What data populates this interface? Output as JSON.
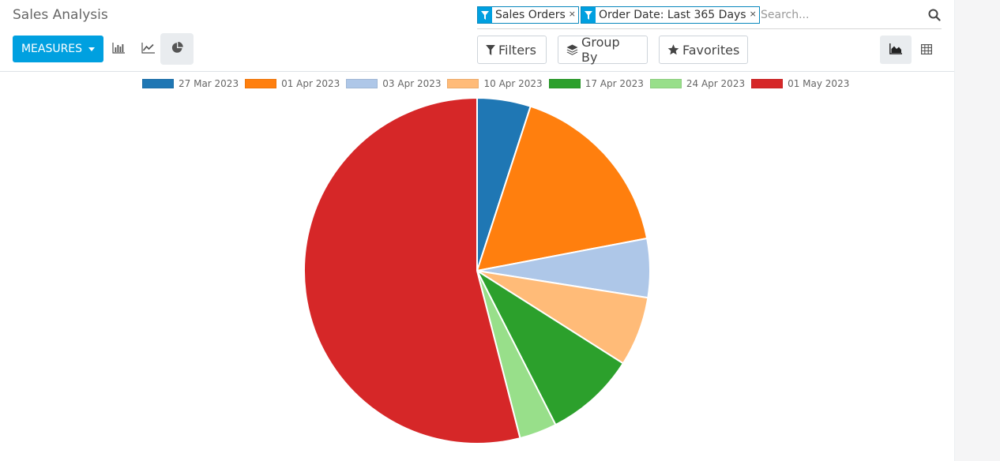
{
  "app": {
    "title": "Sales Analysis"
  },
  "search": {
    "facets": [
      {
        "value": "Sales Orders"
      },
      {
        "value": "Order Date: Last 365 Days"
      }
    ],
    "remove_glyph": "×",
    "placeholder": "Search..."
  },
  "toolbar": {
    "measures_label": "MEASURES",
    "filters_label": "Filters",
    "groupby_label": "Group By",
    "favorites_label": "Favorites"
  },
  "icons": {
    "bar": "bar-chart-icon",
    "line": "line-chart-icon",
    "pie": "pie-chart-icon",
    "graph_view": "area-chart-icon",
    "pivot_view": "table-grid-icon"
  },
  "colors": {
    "accent": "#00a0e0"
  },
  "chart_data": {
    "type": "pie",
    "legend_position": "top",
    "categories": [
      "27 Mar 2023",
      "01 Apr 2023",
      "03 Apr 2023",
      "10 Apr 2023",
      "17 Apr 2023",
      "24 Apr 2023",
      "01 May 2023"
    ],
    "values": [
      5,
      17,
      5.5,
      6.5,
      8.5,
      3.5,
      54
    ],
    "colors": [
      "#1f77b4",
      "#ff7f0e",
      "#aec7e8",
      "#ffbb78",
      "#2ca02c",
      "#98df8a",
      "#d62728"
    ]
  }
}
